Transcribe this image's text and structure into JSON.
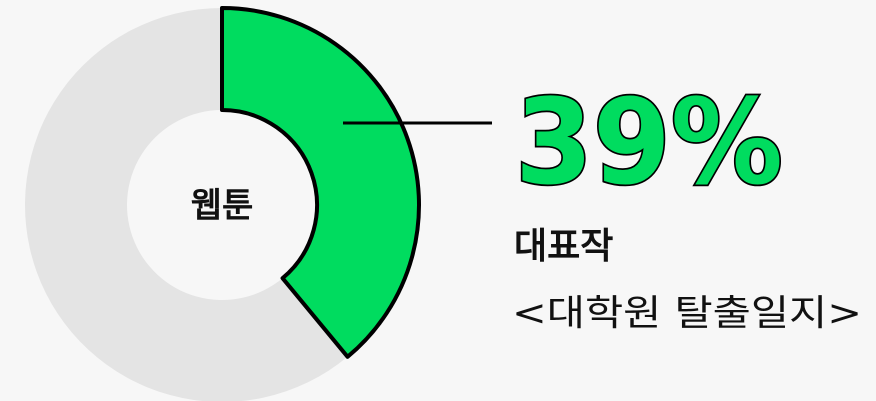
{
  "chart_data": {
    "type": "pie",
    "center_label": "웹툰",
    "values": [
      39,
      61
    ],
    "value_labels": [
      "39%",
      null
    ],
    "colors": [
      "#00dc5f",
      "#e4e4e4"
    ],
    "annotations": [
      "대표작",
      "<대학원 탈출일지>"
    ]
  }
}
